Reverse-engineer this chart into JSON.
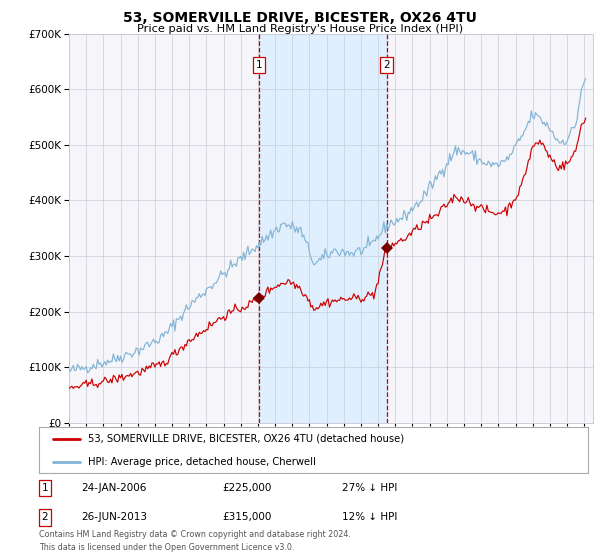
{
  "title": "53, SOMERVILLE DRIVE, BICESTER, OX26 4TU",
  "subtitle": "Price paid vs. HM Land Registry's House Price Index (HPI)",
  "legend_line1": "53, SOMERVILLE DRIVE, BICESTER, OX26 4TU (detached house)",
  "legend_line2": "HPI: Average price, detached house, Cherwell",
  "table_row1_num": "1",
  "table_row1_date": "24-JAN-2006",
  "table_row1_price": "£225,000",
  "table_row1_hpi": "27% ↓ HPI",
  "table_row2_num": "2",
  "table_row2_date": "26-JUN-2013",
  "table_row2_price": "£315,000",
  "table_row2_hpi": "12% ↓ HPI",
  "footer_line1": "Contains HM Land Registry data © Crown copyright and database right 2024.",
  "footer_line2": "This data is licensed under the Open Government Licence v3.0.",
  "sale1_year": 2006.07,
  "sale1_price": 225000,
  "sale2_year": 2013.49,
  "sale2_price": 315000,
  "hpi_line_color": "#82b4d5",
  "price_line_color": "#cc0000",
  "sale_marker_color": "#7a0000",
  "vline_color": "#cc0000",
  "shade_color": "#ddeeff",
  "grid_color": "#c8cdd8",
  "bg_color": "#ffffff",
  "plot_bg_color": "#f5f5fa",
  "title_color": "#000000",
  "y_min": 0,
  "y_max": 700000,
  "x_min": 1995.0,
  "x_max": 2025.5
}
